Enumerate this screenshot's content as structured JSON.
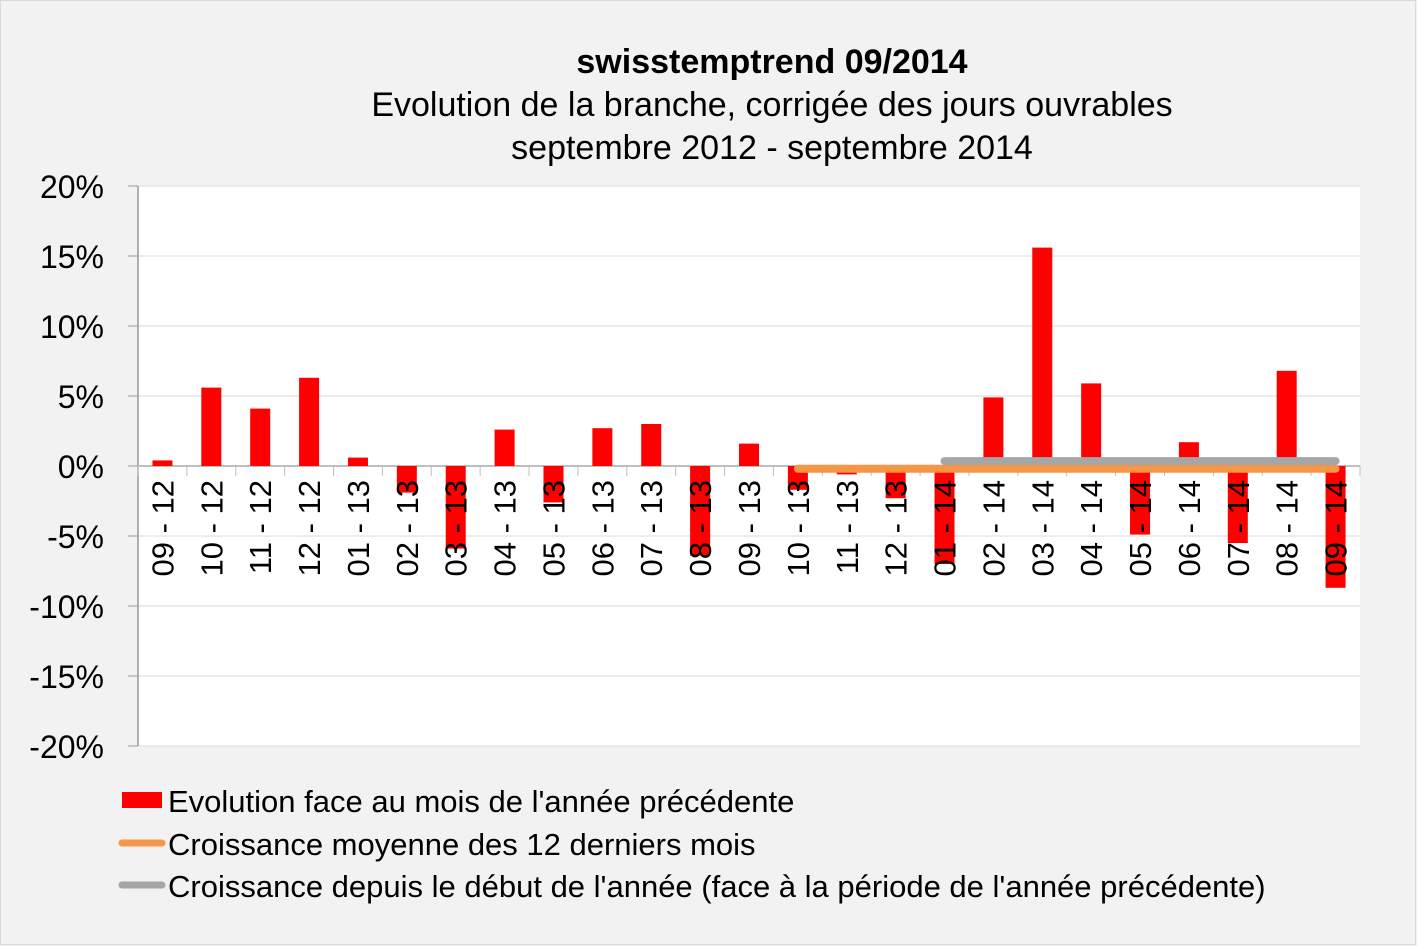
{
  "chart_data": {
    "type": "bar",
    "title": "swisstemptrend 09/2014",
    "subtitle": [
      "Evolution de la branche, corrigée des jours ouvrables",
      "septembre 2012 - septembre 2014"
    ],
    "xlabel": "",
    "ylabel": "",
    "ylim": [
      -20,
      20
    ],
    "yticks": [
      "20%",
      "15%",
      "10%",
      "5%",
      "0%",
      "-5%",
      "-10%",
      "-15%",
      "-20%"
    ],
    "ytick_values": [
      20,
      15,
      10,
      5,
      0,
      -5,
      -10,
      -15,
      -20
    ],
    "grid": true,
    "legend_position": "bottom",
    "categories": [
      "09 - 12",
      "10 - 12",
      "11 - 12",
      "12 - 12",
      "01 - 13",
      "02 - 13",
      "03 - 13",
      "04 - 13",
      "05 - 13",
      "06 - 13",
      "07 - 13",
      "08 - 13",
      "09 - 13",
      "10 - 13",
      "11 - 13",
      "12 - 13",
      "01 - 14",
      "02 - 14",
      "03 - 14",
      "04 - 14",
      "05 - 14",
      "06 - 14",
      "07 - 14",
      "08 - 14",
      "09 - 14"
    ],
    "series": [
      {
        "name": "Evolution face au mois de l'année précédente",
        "type": "bar",
        "color": "#ff0000",
        "values": [
          0.4,
          5.6,
          4.1,
          6.3,
          0.6,
          -1.9,
          -5.9,
          2.6,
          -2.6,
          2.7,
          3.0,
          -6.4,
          1.6,
          -1.7,
          -0.6,
          -2.3,
          -7.0,
          4.9,
          15.6,
          5.9,
          -4.9,
          1.7,
          -5.5,
          6.8,
          -8.7
        ]
      },
      {
        "name": "Croissance moyenne des 12 derniers mois",
        "type": "line",
        "color": "#f79646",
        "from": "10 - 13",
        "to": "09 - 14",
        "value": -0.2
      },
      {
        "name": "Croissance depuis le début de l'année (face à la période de l'année précédente)",
        "type": "line",
        "color": "#a6a6a6",
        "from": "01 - 14",
        "to": "09 - 14",
        "value": 0.35
      }
    ]
  }
}
